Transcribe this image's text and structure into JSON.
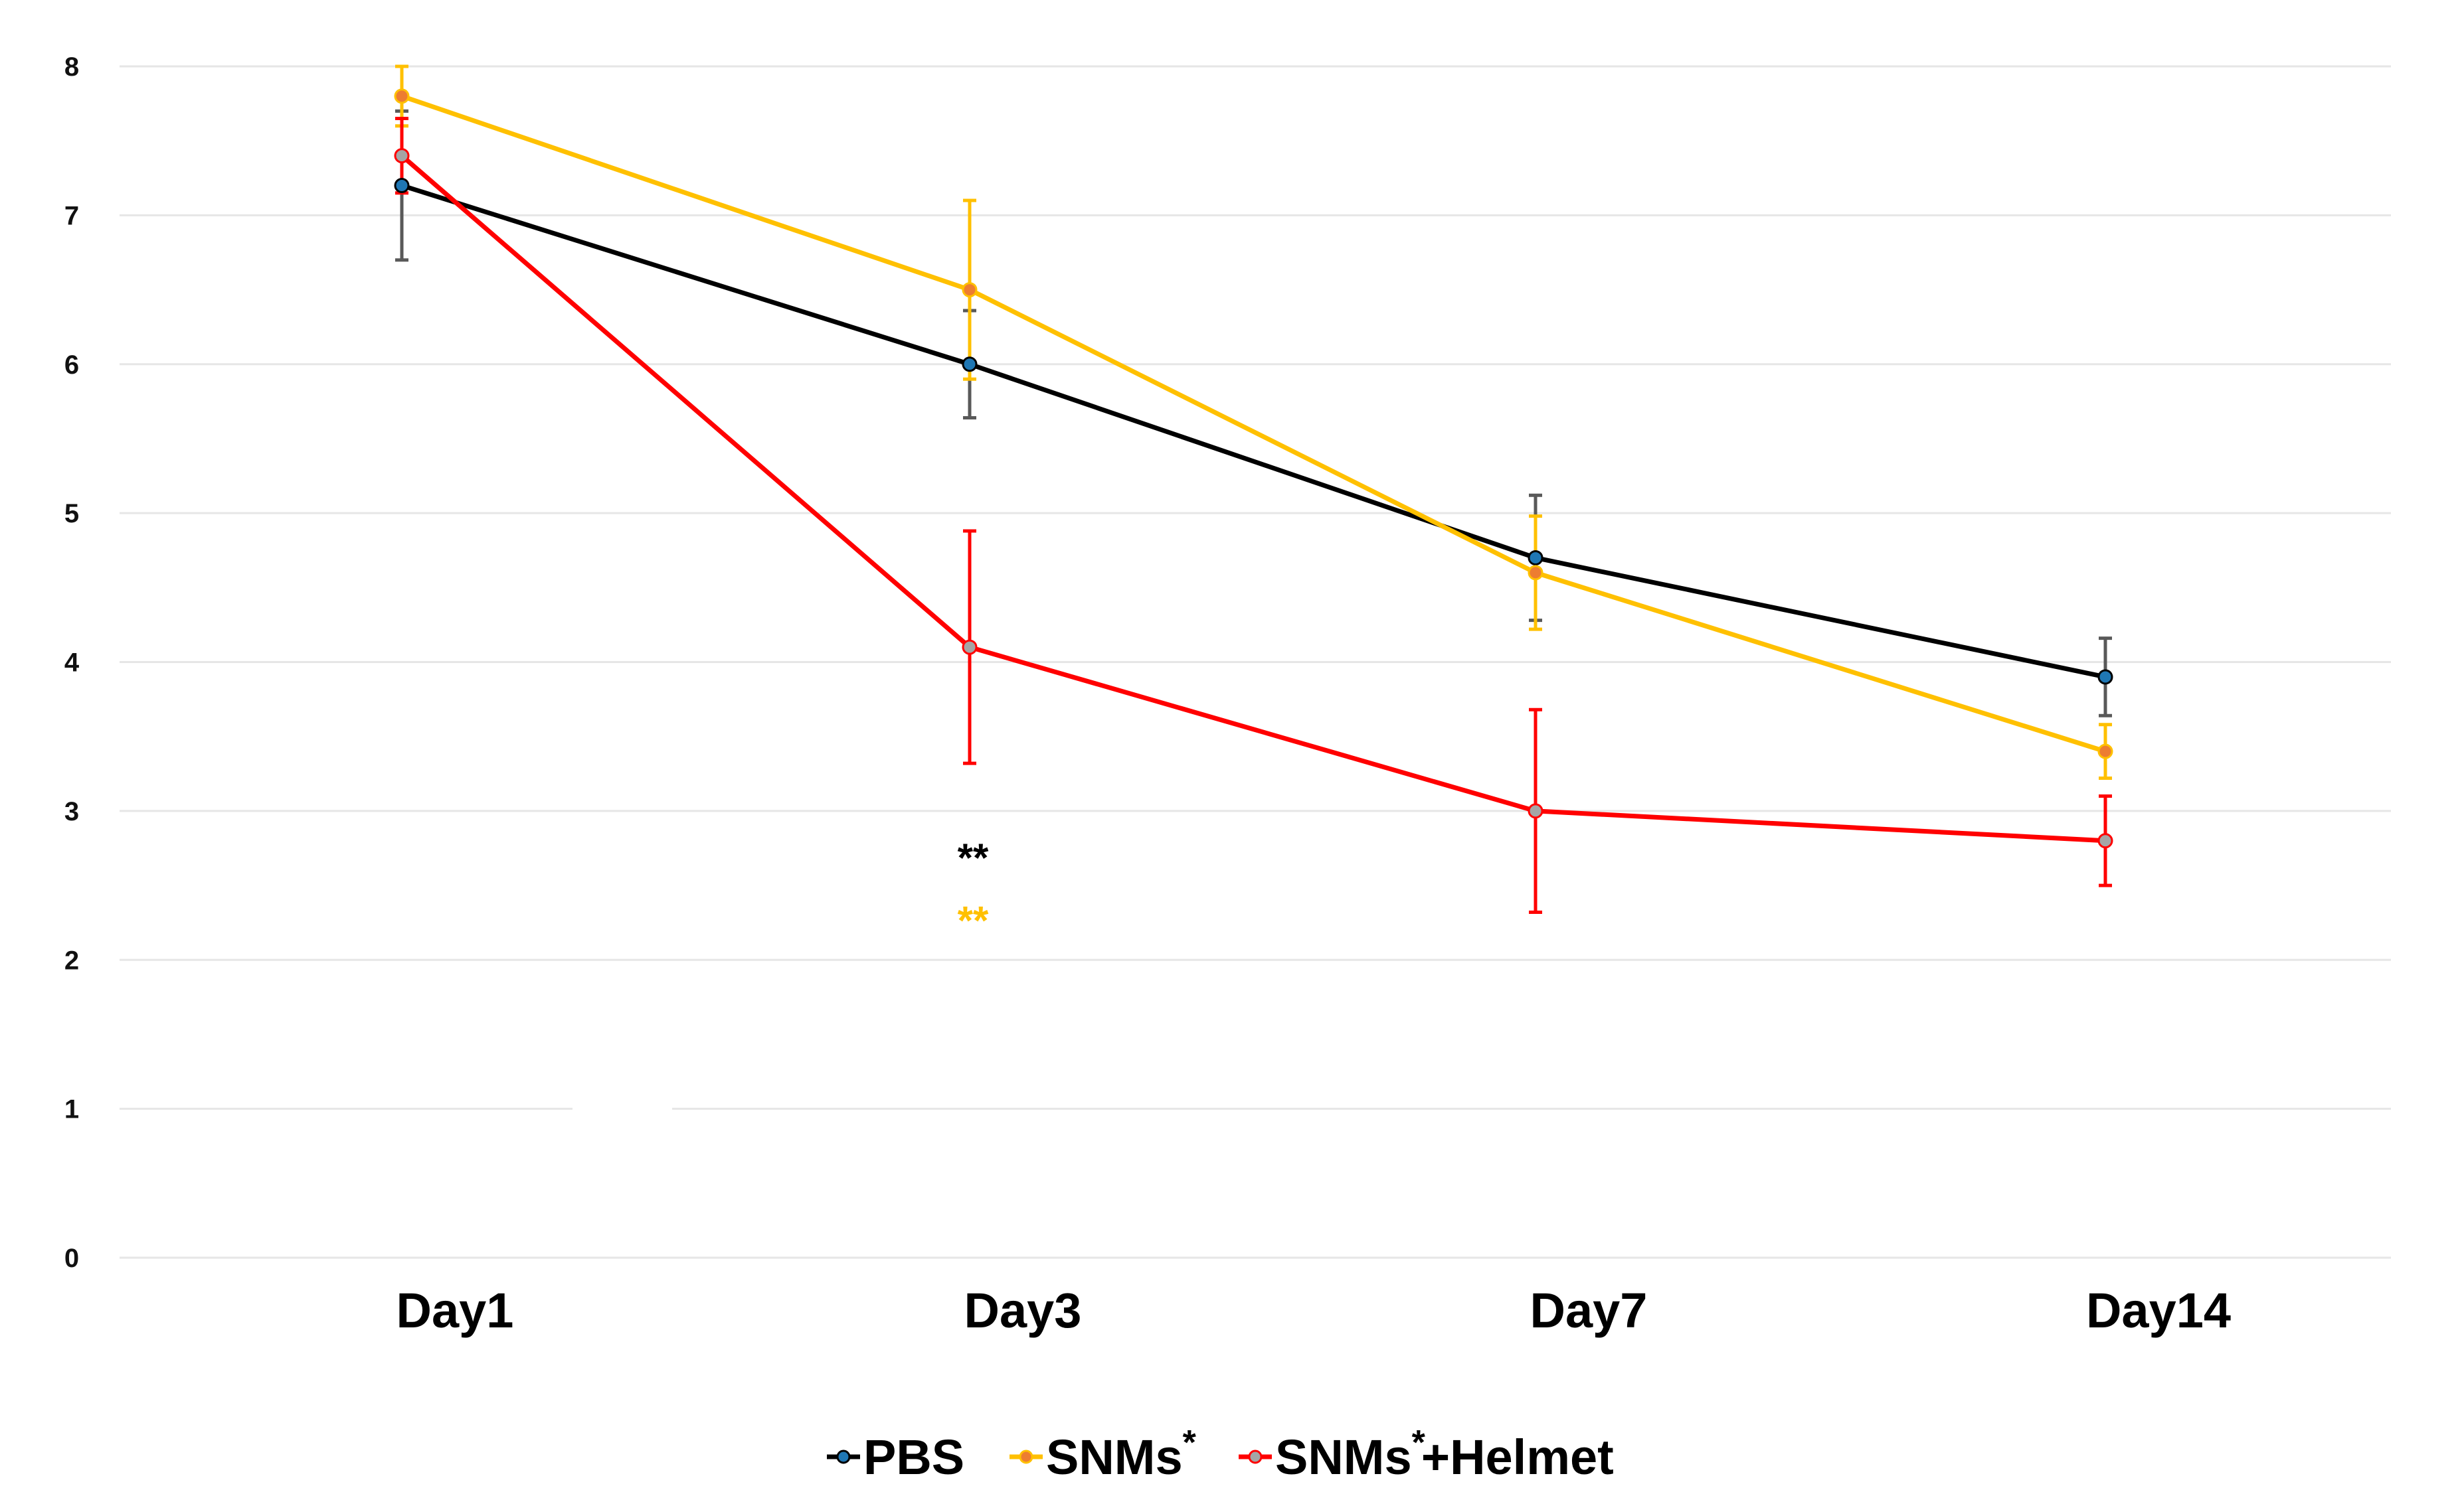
{
  "chart_data": {
    "type": "line",
    "title": "",
    "xlabel": "",
    "ylabel": "",
    "categories": [
      "Day1",
      "Day3",
      "Day7",
      "Day14"
    ],
    "ylim": [
      0,
      8
    ],
    "yticks": [
      "0",
      "1",
      "2",
      "3",
      "4",
      "5",
      "6",
      "7",
      "8"
    ],
    "grid": true,
    "legend_position": "bottom-center",
    "series": [
      {
        "name": "PBS",
        "label_main": "PBS",
        "label_sup": "",
        "label_suffix": "",
        "color": "#000000",
        "marker_color": "#1f77b4",
        "errorbar_color": "#595959",
        "values": [
          7.2,
          6.0,
          4.7,
          3.9
        ],
        "errors": [
          0.5,
          0.36,
          0.42,
          0.26
        ]
      },
      {
        "name": "SNMs*",
        "label_main": "SNMs",
        "label_sup": "*",
        "label_suffix": "",
        "color": "#FFC000",
        "marker_color": "#ED7D31",
        "errorbar_color": "#FFC000",
        "values": [
          7.8,
          6.5,
          4.6,
          3.4
        ],
        "errors": [
          0.2,
          0.6,
          0.38,
          0.18
        ]
      },
      {
        "name": "SNMs*+Helmet",
        "label_main": "SNMs",
        "label_sup": "*",
        "label_suffix": "+Helmet",
        "color": "#FF0000",
        "marker_color": "#A5A5A5",
        "errorbar_color": "#FF0000",
        "values": [
          7.4,
          4.1,
          3.0,
          2.8
        ],
        "errors": [
          0.25,
          0.78,
          0.68,
          0.3
        ]
      }
    ],
    "annotations": [
      {
        "text": "**",
        "category": "Day3",
        "y": 2.7,
        "color": "#000000"
      },
      {
        "text": "**",
        "category": "Day3",
        "y": 2.28,
        "color": "#FFC000"
      }
    ]
  }
}
